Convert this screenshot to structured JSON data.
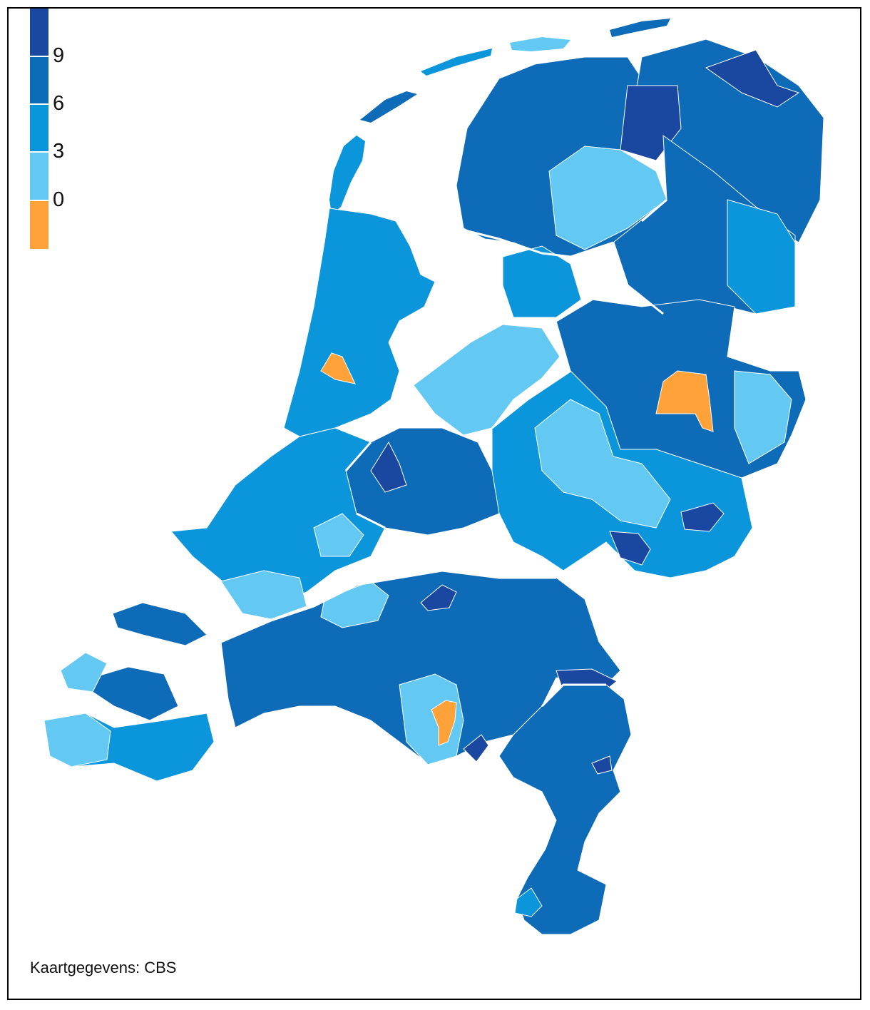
{
  "legend": {
    "bins": [
      {
        "color": "#1a47a0"
      },
      {
        "color": "#0e6bb8"
      },
      {
        "color": "#0b95db"
      },
      {
        "color": "#63c9f3"
      },
      {
        "color": "#ffa23a"
      }
    ],
    "labels": [
      "9",
      "6",
      "3",
      "0"
    ]
  },
  "map": {
    "boundary_color": "#ffffff",
    "sea_color": "#ffffff"
  },
  "source": "Kaartgegevens: CBS"
}
